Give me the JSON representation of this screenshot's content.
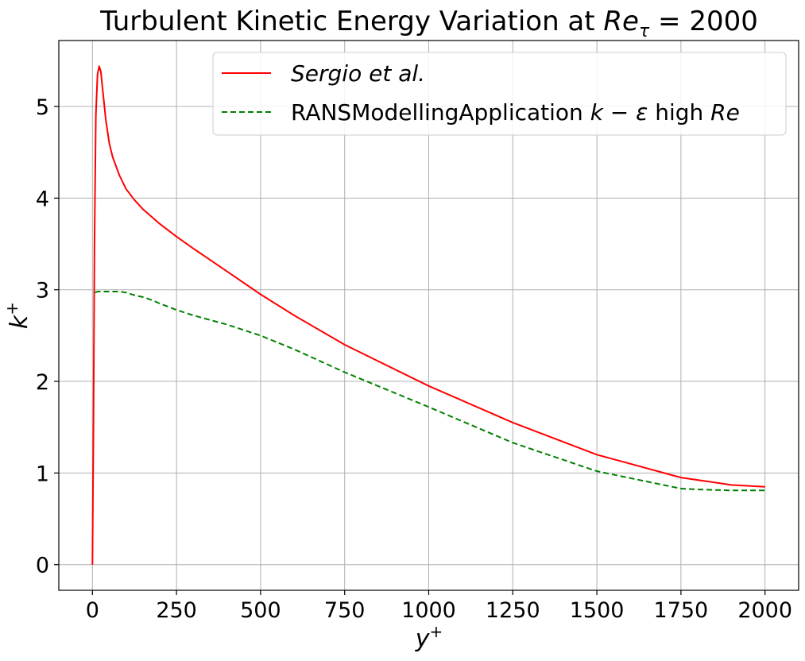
{
  "chart_data": {
    "type": "line",
    "title": "Turbulent Kinetic Energy Variation at Re_τ = 2000",
    "title_parts": [
      "Turbulent Kinetic Energy Variation at ",
      "Re",
      "τ",
      " = 2000"
    ],
    "xlabel": "y+",
    "ylabel": "k+",
    "xlim": [
      -100,
      2100
    ],
    "ylim": [
      -0.28,
      5.72
    ],
    "xticks": [
      0,
      250,
      500,
      750,
      1000,
      1250,
      1500,
      1750,
      2000
    ],
    "yticks": [
      0,
      1,
      2,
      3,
      4,
      5
    ],
    "grid": true,
    "legend_position": "top-right",
    "series": [
      {
        "name": "Sergio et al.",
        "color": "#ff0000",
        "style": "solid",
        "x": [
          0,
          3,
          6,
          10,
          15,
          20,
          25,
          30,
          40,
          50,
          60,
          80,
          100,
          125,
          150,
          200,
          250,
          300,
          400,
          500,
          600,
          750,
          1000,
          1250,
          1500,
          1750,
          1900,
          2000
        ],
        "y": [
          0,
          1.5,
          3.5,
          4.9,
          5.35,
          5.44,
          5.38,
          5.2,
          4.85,
          4.6,
          4.45,
          4.25,
          4.1,
          3.98,
          3.88,
          3.72,
          3.58,
          3.45,
          3.2,
          2.95,
          2.72,
          2.4,
          1.95,
          1.55,
          1.2,
          0.95,
          0.87,
          0.85
        ]
      },
      {
        "name": "RANSModellingApplication k-ε high Re",
        "color": "#008000",
        "style": "dashed",
        "x": [
          8,
          15,
          30,
          50,
          80,
          100,
          125,
          150,
          175,
          200,
          250,
          300,
          400,
          500,
          600,
          750,
          1000,
          1250,
          1500,
          1750,
          1800,
          1900,
          2000
        ],
        "y": [
          2.97,
          2.98,
          2.98,
          2.98,
          2.98,
          2.97,
          2.94,
          2.92,
          2.89,
          2.85,
          2.78,
          2.72,
          2.62,
          2.5,
          2.35,
          2.1,
          1.72,
          1.33,
          1.02,
          0.83,
          0.82,
          0.81,
          0.81
        ]
      }
    ]
  },
  "legend": {
    "entry1": {
      "text": "Sergio et al."
    },
    "entry2": {
      "prefix": "RANSModellingApplication ",
      "math1": "k",
      "op": " − ",
      "math2": "ε",
      "mid": " high ",
      "math3": "Re"
    }
  },
  "axis_labels": {
    "x_var": "y",
    "x_sup": "+",
    "y_var": "k",
    "y_sup": "+"
  }
}
